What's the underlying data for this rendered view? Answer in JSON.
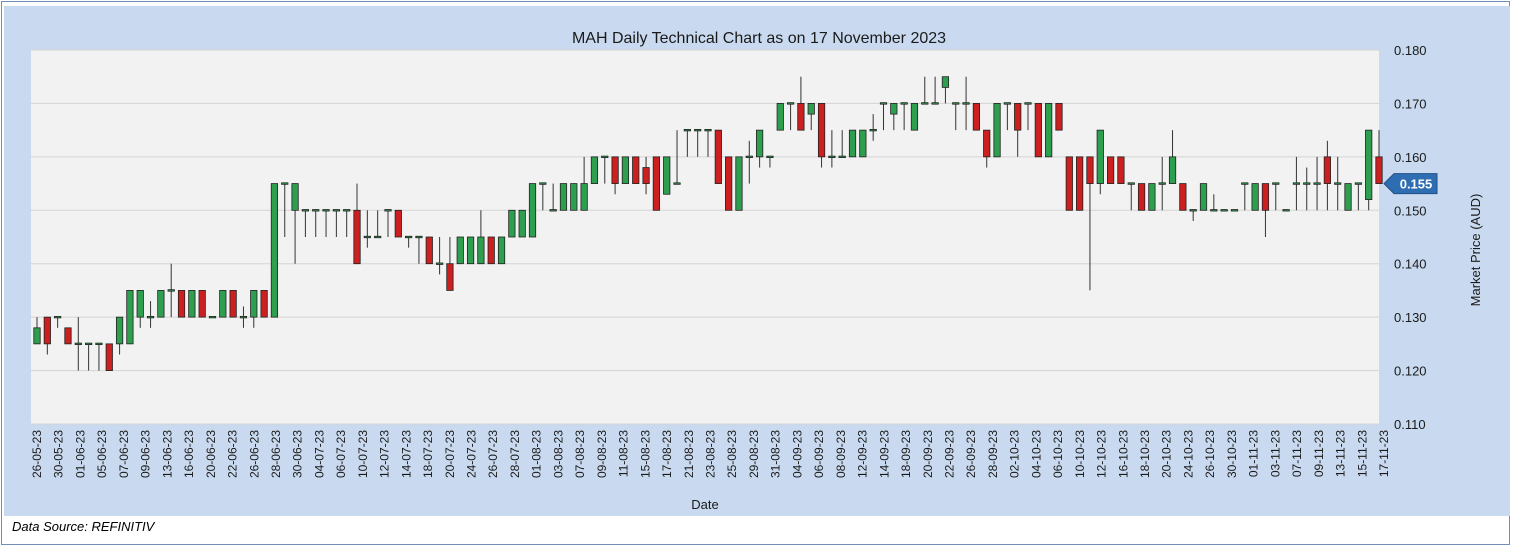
{
  "chart_data": {
    "type": "candlestick",
    "title": "MAH Daily Technical Chart as on 17 November 2023",
    "xlabel": "Date",
    "ylabel": "Market Price (AUD)",
    "ylim": [
      0.11,
      0.18
    ],
    "yticks": [
      "0.180",
      "0.170",
      "0.160",
      "0.150",
      "0.140",
      "0.130",
      "0.120",
      "0.110"
    ],
    "ytick_values": [
      0.18,
      0.17,
      0.16,
      0.15,
      0.14,
      0.13,
      0.12,
      0.11
    ],
    "last_price_label": "0.155",
    "last_price": 0.155,
    "grid": "horizontal",
    "up_color": "#2e9e4f",
    "down_color": "#cc1f1f",
    "x_tick_labels": [
      "26-05-23",
      "30-05-23",
      "01-06-23",
      "05-06-23",
      "07-06-23",
      "09-06-23",
      "13-06-23",
      "16-06-23",
      "20-06-23",
      "22-06-23",
      "26-06-23",
      "28-06-23",
      "30-06-23",
      "04-07-23",
      "06-07-23",
      "10-07-23",
      "12-07-23",
      "14-07-23",
      "18-07-23",
      "20-07-23",
      "24-07-23",
      "26-07-23",
      "28-07-23",
      "01-08-23",
      "03-08-23",
      "07-08-23",
      "09-08-23",
      "11-08-23",
      "15-08-23",
      "17-08-23",
      "21-08-23",
      "23-08-23",
      "25-08-23",
      "29-08-23",
      "31-08-23",
      "04-09-23",
      "06-09-23",
      "08-09-23",
      "12-09-23",
      "14-09-23",
      "18-09-23",
      "20-09-23",
      "22-09-23",
      "26-09-23",
      "28-09-23",
      "02-10-23",
      "04-10-23",
      "06-10-23",
      "10-10-23",
      "12-10-23",
      "16-10-23",
      "18-10-23",
      "20-10-23",
      "24-10-23",
      "26-10-23",
      "30-10-23",
      "01-11-23",
      "03-11-23",
      "07-11-23",
      "09-11-23",
      "13-11-23",
      "15-11-23",
      "17-11-23"
    ],
    "candles": [
      [
        0.125,
        0.128,
        0.13,
        0.125
      ],
      [
        0.13,
        0.125,
        0.13,
        0.123
      ],
      [
        0.13,
        0.13,
        0.13,
        0.128
      ],
      [
        0.128,
        0.125,
        0.128,
        0.125
      ],
      [
        0.125,
        0.125,
        0.13,
        0.12
      ],
      [
        0.125,
        0.125,
        0.125,
        0.12
      ],
      [
        0.125,
        0.125,
        0.125,
        0.12
      ],
      [
        0.125,
        0.12,
        0.125,
        0.12
      ],
      [
        0.125,
        0.13,
        0.13,
        0.123
      ],
      [
        0.125,
        0.135,
        0.135,
        0.125
      ],
      [
        0.13,
        0.135,
        0.135,
        0.128
      ],
      [
        0.13,
        0.13,
        0.133,
        0.128
      ],
      [
        0.13,
        0.135,
        0.135,
        0.13
      ],
      [
        0.135,
        0.135,
        0.14,
        0.13
      ],
      [
        0.135,
        0.13,
        0.135,
        0.13
      ],
      [
        0.13,
        0.135,
        0.135,
        0.13
      ],
      [
        0.135,
        0.13,
        0.135,
        0.13
      ],
      [
        0.13,
        0.13,
        0.13,
        0.13
      ],
      [
        0.13,
        0.135,
        0.135,
        0.13
      ],
      [
        0.135,
        0.13,
        0.135,
        0.13
      ],
      [
        0.13,
        0.13,
        0.132,
        0.128
      ],
      [
        0.13,
        0.135,
        0.135,
        0.128
      ],
      [
        0.135,
        0.13,
        0.135,
        0.13
      ],
      [
        0.13,
        0.155,
        0.155,
        0.13
      ],
      [
        0.155,
        0.155,
        0.155,
        0.145
      ],
      [
        0.15,
        0.155,
        0.155,
        0.14
      ],
      [
        0.15,
        0.15,
        0.15,
        0.145
      ],
      [
        0.15,
        0.15,
        0.15,
        0.145
      ],
      [
        0.15,
        0.15,
        0.15,
        0.145
      ],
      [
        0.15,
        0.15,
        0.15,
        0.145
      ],
      [
        0.15,
        0.15,
        0.15,
        0.145
      ],
      [
        0.15,
        0.14,
        0.155,
        0.14
      ],
      [
        0.145,
        0.145,
        0.15,
        0.143
      ],
      [
        0.145,
        0.145,
        0.15,
        0.145
      ],
      [
        0.15,
        0.15,
        0.15,
        0.145
      ],
      [
        0.15,
        0.145,
        0.15,
        0.145
      ],
      [
        0.145,
        0.145,
        0.145,
        0.143
      ],
      [
        0.145,
        0.145,
        0.145,
        0.14
      ],
      [
        0.145,
        0.14,
        0.145,
        0.14
      ],
      [
        0.14,
        0.14,
        0.145,
        0.138
      ],
      [
        0.14,
        0.135,
        0.145,
        0.135
      ],
      [
        0.14,
        0.145,
        0.145,
        0.14
      ],
      [
        0.14,
        0.145,
        0.145,
        0.14
      ],
      [
        0.14,
        0.145,
        0.15,
        0.14
      ],
      [
        0.145,
        0.14,
        0.145,
        0.14
      ],
      [
        0.14,
        0.145,
        0.145,
        0.14
      ],
      [
        0.145,
        0.15,
        0.15,
        0.145
      ],
      [
        0.145,
        0.15,
        0.15,
        0.145
      ],
      [
        0.145,
        0.155,
        0.155,
        0.145
      ],
      [
        0.155,
        0.155,
        0.155,
        0.15
      ],
      [
        0.15,
        0.15,
        0.155,
        0.15
      ],
      [
        0.15,
        0.155,
        0.155,
        0.15
      ],
      [
        0.15,
        0.155,
        0.155,
        0.15
      ],
      [
        0.15,
        0.155,
        0.16,
        0.15
      ],
      [
        0.155,
        0.16,
        0.16,
        0.155
      ],
      [
        0.16,
        0.16,
        0.16,
        0.155
      ],
      [
        0.16,
        0.155,
        0.16,
        0.153
      ],
      [
        0.155,
        0.16,
        0.16,
        0.155
      ],
      [
        0.16,
        0.155,
        0.16,
        0.155
      ],
      [
        0.158,
        0.155,
        0.16,
        0.153
      ],
      [
        0.16,
        0.15,
        0.16,
        0.15
      ],
      [
        0.153,
        0.16,
        0.16,
        0.153
      ],
      [
        0.155,
        0.155,
        0.165,
        0.155
      ],
      [
        0.165,
        0.165,
        0.165,
        0.16
      ],
      [
        0.165,
        0.165,
        0.165,
        0.16
      ],
      [
        0.165,
        0.165,
        0.165,
        0.16
      ],
      [
        0.165,
        0.155,
        0.165,
        0.155
      ],
      [
        0.16,
        0.15,
        0.16,
        0.15
      ],
      [
        0.15,
        0.16,
        0.16,
        0.15
      ],
      [
        0.16,
        0.16,
        0.163,
        0.155
      ],
      [
        0.16,
        0.165,
        0.165,
        0.158
      ],
      [
        0.16,
        0.16,
        0.16,
        0.158
      ],
      [
        0.165,
        0.17,
        0.17,
        0.165
      ],
      [
        0.17,
        0.17,
        0.17,
        0.165
      ],
      [
        0.17,
        0.165,
        0.175,
        0.165
      ],
      [
        0.168,
        0.17,
        0.17,
        0.165
      ],
      [
        0.17,
        0.16,
        0.17,
        0.158
      ],
      [
        0.16,
        0.16,
        0.165,
        0.158
      ],
      [
        0.16,
        0.16,
        0.165,
        0.16
      ],
      [
        0.16,
        0.165,
        0.165,
        0.16
      ],
      [
        0.16,
        0.165,
        0.165,
        0.16
      ],
      [
        0.165,
        0.165,
        0.168,
        0.163
      ],
      [
        0.17,
        0.17,
        0.17,
        0.165
      ],
      [
        0.168,
        0.17,
        0.17,
        0.165
      ],
      [
        0.17,
        0.17,
        0.17,
        0.165
      ],
      [
        0.165,
        0.17,
        0.17,
        0.165
      ],
      [
        0.17,
        0.17,
        0.175,
        0.17
      ],
      [
        0.17,
        0.17,
        0.175,
        0.17
      ],
      [
        0.173,
        0.175,
        0.175,
        0.17
      ],
      [
        0.17,
        0.17,
        0.17,
        0.165
      ],
      [
        0.17,
        0.17,
        0.175,
        0.165
      ],
      [
        0.17,
        0.165,
        0.17,
        0.165
      ],
      [
        0.165,
        0.16,
        0.165,
        0.158
      ],
      [
        0.16,
        0.17,
        0.17,
        0.16
      ],
      [
        0.17,
        0.17,
        0.17,
        0.165
      ],
      [
        0.17,
        0.165,
        0.17,
        0.16
      ],
      [
        0.17,
        0.17,
        0.17,
        0.165
      ],
      [
        0.17,
        0.16,
        0.17,
        0.16
      ],
      [
        0.16,
        0.17,
        0.17,
        0.16
      ],
      [
        0.17,
        0.165,
        0.17,
        0.165
      ],
      [
        0.16,
        0.15,
        0.16,
        0.15
      ],
      [
        0.16,
        0.15,
        0.16,
        0.15
      ],
      [
        0.16,
        0.155,
        0.16,
        0.135
      ],
      [
        0.155,
        0.165,
        0.165,
        0.153
      ],
      [
        0.16,
        0.155,
        0.16,
        0.155
      ],
      [
        0.16,
        0.155,
        0.16,
        0.155
      ],
      [
        0.155,
        0.155,
        0.155,
        0.15
      ],
      [
        0.155,
        0.15,
        0.155,
        0.15
      ],
      [
        0.15,
        0.155,
        0.155,
        0.15
      ],
      [
        0.155,
        0.155,
        0.16,
        0.15
      ],
      [
        0.155,
        0.16,
        0.165,
        0.155
      ],
      [
        0.155,
        0.15,
        0.155,
        0.15
      ],
      [
        0.15,
        0.15,
        0.15,
        0.148
      ],
      [
        0.15,
        0.155,
        0.155,
        0.15
      ],
      [
        0.15,
        0.15,
        0.153,
        0.15
      ],
      [
        0.15,
        0.15,
        0.15,
        0.15
      ],
      [
        0.15,
        0.15,
        0.15,
        0.15
      ],
      [
        0.155,
        0.155,
        0.155,
        0.15
      ],
      [
        0.15,
        0.155,
        0.155,
        0.15
      ],
      [
        0.155,
        0.15,
        0.155,
        0.145
      ],
      [
        0.155,
        0.155,
        0.155,
        0.15
      ],
      [
        0.15,
        0.15,
        0.15,
        0.15
      ],
      [
        0.155,
        0.155,
        0.16,
        0.15
      ],
      [
        0.155,
        0.155,
        0.158,
        0.15
      ],
      [
        0.155,
        0.155,
        0.16,
        0.15
      ],
      [
        0.16,
        0.155,
        0.163,
        0.15
      ],
      [
        0.155,
        0.155,
        0.16,
        0.15
      ],
      [
        0.15,
        0.155,
        0.155,
        0.15
      ],
      [
        0.155,
        0.155,
        0.155,
        0.15
      ],
      [
        0.152,
        0.165,
        0.165,
        0.15
      ],
      [
        0.16,
        0.155,
        0.165,
        0.155
      ]
    ]
  },
  "footer": {
    "source": "Data Source: REFINITIV"
  }
}
